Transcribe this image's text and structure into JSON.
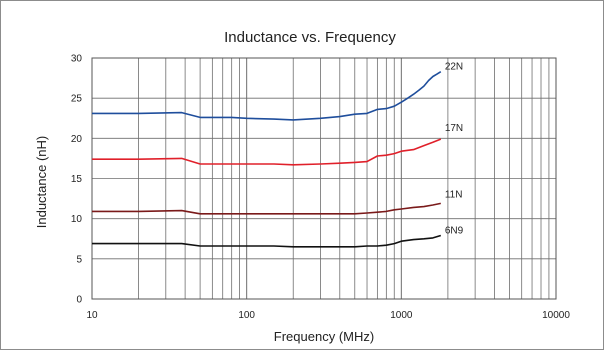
{
  "chart_data": {
    "type": "line",
    "title": "Inductance vs. Frequency",
    "xlabel": "Frequency (MHz)",
    "ylabel": "Inductance (nH)",
    "x_scale": "log",
    "xlim": [
      10,
      10000
    ],
    "ylim": [
      0,
      30
    ],
    "x_ticks": [
      10,
      100,
      1000,
      10000
    ],
    "x_tick_labels": [
      "10",
      "100",
      "1000",
      "10000"
    ],
    "y_ticks": [
      0,
      5,
      10,
      15,
      20,
      25,
      30
    ],
    "y_tick_labels": [
      "0",
      "5",
      "10",
      "15",
      "20",
      "25",
      "30"
    ],
    "grid": true,
    "legend": "none",
    "series": [
      {
        "name": "22N",
        "color": "#1f4e9c",
        "x": [
          10,
          20,
          38,
          50,
          80,
          100,
          150,
          200,
          300,
          400,
          500,
          600,
          700,
          800,
          900,
          1000,
          1100,
          1200,
          1300,
          1400,
          1500,
          1600,
          1700,
          1800
        ],
        "y": [
          23.1,
          23.1,
          23.2,
          22.6,
          22.6,
          22.5,
          22.4,
          22.3,
          22.5,
          22.7,
          23.0,
          23.1,
          23.6,
          23.7,
          24.0,
          24.5,
          25.0,
          25.5,
          26.0,
          26.5,
          27.2,
          27.7,
          28.0,
          28.3
        ]
      },
      {
        "name": "17N",
        "color": "#e0202a",
        "x": [
          10,
          20,
          38,
          50,
          80,
          100,
          150,
          200,
          300,
          400,
          500,
          600,
          700,
          800,
          900,
          1000,
          1200,
          1400,
          1600,
          1800
        ],
        "y": [
          17.4,
          17.4,
          17.5,
          16.8,
          16.8,
          16.8,
          16.8,
          16.7,
          16.8,
          16.9,
          17.0,
          17.1,
          17.8,
          17.9,
          18.1,
          18.4,
          18.6,
          19.1,
          19.5,
          19.9
        ]
      },
      {
        "name": "11N",
        "color": "#7a1a1a",
        "x": [
          10,
          20,
          38,
          50,
          80,
          100,
          150,
          200,
          300,
          400,
          500,
          600,
          700,
          800,
          900,
          1000,
          1200,
          1400,
          1600,
          1800
        ],
        "y": [
          10.9,
          10.9,
          11.0,
          10.6,
          10.6,
          10.6,
          10.6,
          10.6,
          10.6,
          10.6,
          10.6,
          10.7,
          10.8,
          10.9,
          11.1,
          11.2,
          11.4,
          11.5,
          11.7,
          11.9
        ]
      },
      {
        "name": "6N9",
        "color": "#111111",
        "x": [
          10,
          20,
          38,
          50,
          80,
          100,
          150,
          200,
          300,
          400,
          500,
          600,
          700,
          800,
          900,
          1000,
          1200,
          1400,
          1600,
          1800
        ],
        "y": [
          6.9,
          6.9,
          6.9,
          6.6,
          6.6,
          6.6,
          6.6,
          6.5,
          6.5,
          6.5,
          6.5,
          6.6,
          6.6,
          6.7,
          6.9,
          7.2,
          7.4,
          7.5,
          7.6,
          7.9
        ]
      }
    ]
  }
}
